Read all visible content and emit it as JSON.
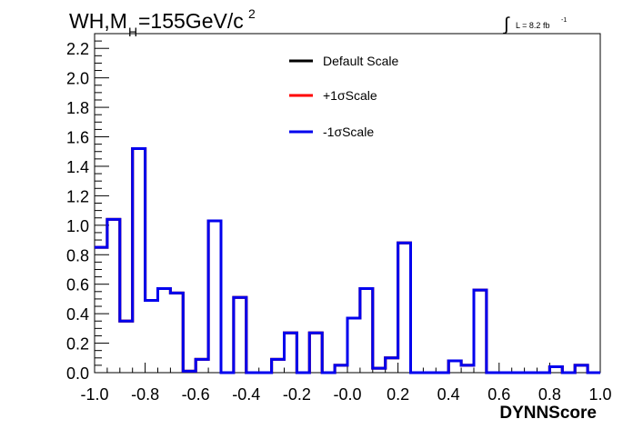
{
  "chart_data": {
    "type": "line",
    "step": true,
    "title_main": "WH,M",
    "title_sub": "H",
    "title_rest": "=155GeV/c",
    "title_sup": "2",
    "lumi_label": "L = 8.2 fb",
    "lumi_sup": "-1",
    "xlabel": "DYNNScore",
    "ylabel": "",
    "xlim": [
      -1.0,
      1.0
    ],
    "ylim": [
      0.0,
      2.3
    ],
    "x_ticks": [
      -1.0,
      -0.8,
      -0.6,
      -0.4,
      -0.2,
      0.0,
      0.2,
      0.4,
      0.6,
      0.8,
      1.0
    ],
    "x_tick_labels": [
      "-1.0",
      "-0.8",
      "-0.6",
      "-0.4",
      "-0.2",
      "-0.0",
      "0.2",
      "0.4",
      "0.6",
      "0.8",
      "1.0"
    ],
    "y_ticks": [
      0.0,
      0.2,
      0.4,
      0.6,
      0.8,
      1.0,
      1.2,
      1.4,
      1.6,
      1.8,
      2.0,
      2.2
    ],
    "y_tick_labels": [
      "0.0",
      "0.2",
      "0.4",
      "0.6",
      "0.8",
      "1.0",
      "1.2",
      "1.4",
      "1.6",
      "1.8",
      "2.0",
      "2.2"
    ],
    "bin_edges": [
      -1.0,
      -0.95,
      -0.9,
      -0.85,
      -0.8,
      -0.75,
      -0.7,
      -0.65,
      -0.6,
      -0.55,
      -0.5,
      -0.45,
      -0.4,
      -0.35,
      -0.3,
      -0.25,
      -0.2,
      -0.15,
      -0.1,
      -0.05,
      0.0,
      0.05,
      0.1,
      0.15,
      0.2,
      0.25,
      0.3,
      0.35,
      0.4,
      0.45,
      0.5,
      0.55,
      0.6,
      0.65,
      0.7,
      0.75,
      0.8,
      0.85,
      0.9,
      0.95,
      1.0
    ],
    "series": [
      {
        "name": "Default Scale",
        "color": "#000000",
        "values": [
          0.85,
          1.04,
          0.35,
          1.52,
          0.49,
          0.57,
          0.54,
          0.01,
          0.09,
          1.03,
          0.0,
          0.51,
          0.0,
          0.0,
          0.09,
          0.27,
          0.0,
          0.27,
          0.0,
          0.05,
          0.37,
          0.57,
          0.03,
          0.1,
          0.88,
          0.0,
          0.0,
          0.0,
          0.08,
          0.05,
          0.56,
          0.0,
          0.0,
          0.0,
          0.0,
          0.0,
          0.04,
          0.0,
          0.05,
          0.0
        ]
      },
      {
        "name": "+1σScale",
        "color": "#ff0000",
        "values": [
          0.85,
          1.04,
          0.35,
          1.52,
          0.49,
          0.57,
          0.54,
          0.01,
          0.09,
          1.03,
          0.0,
          0.51,
          0.0,
          0.0,
          0.09,
          0.27,
          0.0,
          0.27,
          0.0,
          0.05,
          0.37,
          0.57,
          0.03,
          0.1,
          0.88,
          0.0,
          0.0,
          0.0,
          0.08,
          0.05,
          0.56,
          0.0,
          0.0,
          0.0,
          0.0,
          0.0,
          0.04,
          0.0,
          0.05,
          0.0
        ]
      },
      {
        "name": "-1σScale",
        "color": "#0000ee",
        "values": [
          0.85,
          1.04,
          0.35,
          1.52,
          0.49,
          0.57,
          0.54,
          0.01,
          0.09,
          1.03,
          0.0,
          0.51,
          0.0,
          0.0,
          0.09,
          0.27,
          0.0,
          0.27,
          0.0,
          0.05,
          0.37,
          0.57,
          0.03,
          0.1,
          0.88,
          0.0,
          0.0,
          0.0,
          0.08,
          0.05,
          0.56,
          0.0,
          0.0,
          0.0,
          0.0,
          0.0,
          0.04,
          0.0,
          0.05,
          0.0
        ]
      }
    ],
    "legend_position": "top-center",
    "grid": false
  }
}
